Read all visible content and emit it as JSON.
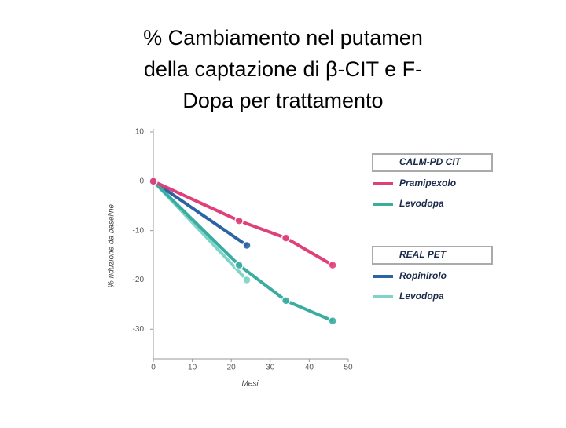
{
  "chart_data": {
    "type": "line",
    "title_lines": [
      "% Cambiamento nel putamen",
      "della captazione di β-CIT e F-",
      "Dopa per trattamento"
    ],
    "x_label": "Mesi",
    "y_label": "% riduzione da baseline",
    "xlim": [
      0,
      50
    ],
    "xticks": [
      0,
      10,
      20,
      30,
      40,
      50
    ],
    "ylim": [
      -36,
      10
    ],
    "yticks": [
      10,
      0,
      -10,
      -20,
      -30
    ],
    "groups": [
      {
        "name": "CALM-PD CIT",
        "series": [
          {
            "name": "Pramipexolo",
            "color": "#e0407a",
            "x": [
              0,
              22,
              34,
              46
            ],
            "values": [
              0,
              -8,
              -11.5,
              -17
            ]
          },
          {
            "name": "Levodopa",
            "color": "#3aada0",
            "x": [
              0,
              22,
              34,
              46
            ],
            "values": [
              0,
              -17,
              -24.2,
              -28.3
            ]
          }
        ]
      },
      {
        "name": "REAL PET",
        "series": [
          {
            "name": "Ropinirolo",
            "color": "#2a64a4",
            "x": [
              0,
              24
            ],
            "values": [
              0,
              -13
            ]
          },
          {
            "name": "Levodopa",
            "color": "#7fd3c8",
            "x": [
              0,
              24
            ],
            "values": [
              0,
              -20
            ]
          }
        ]
      }
    ]
  }
}
